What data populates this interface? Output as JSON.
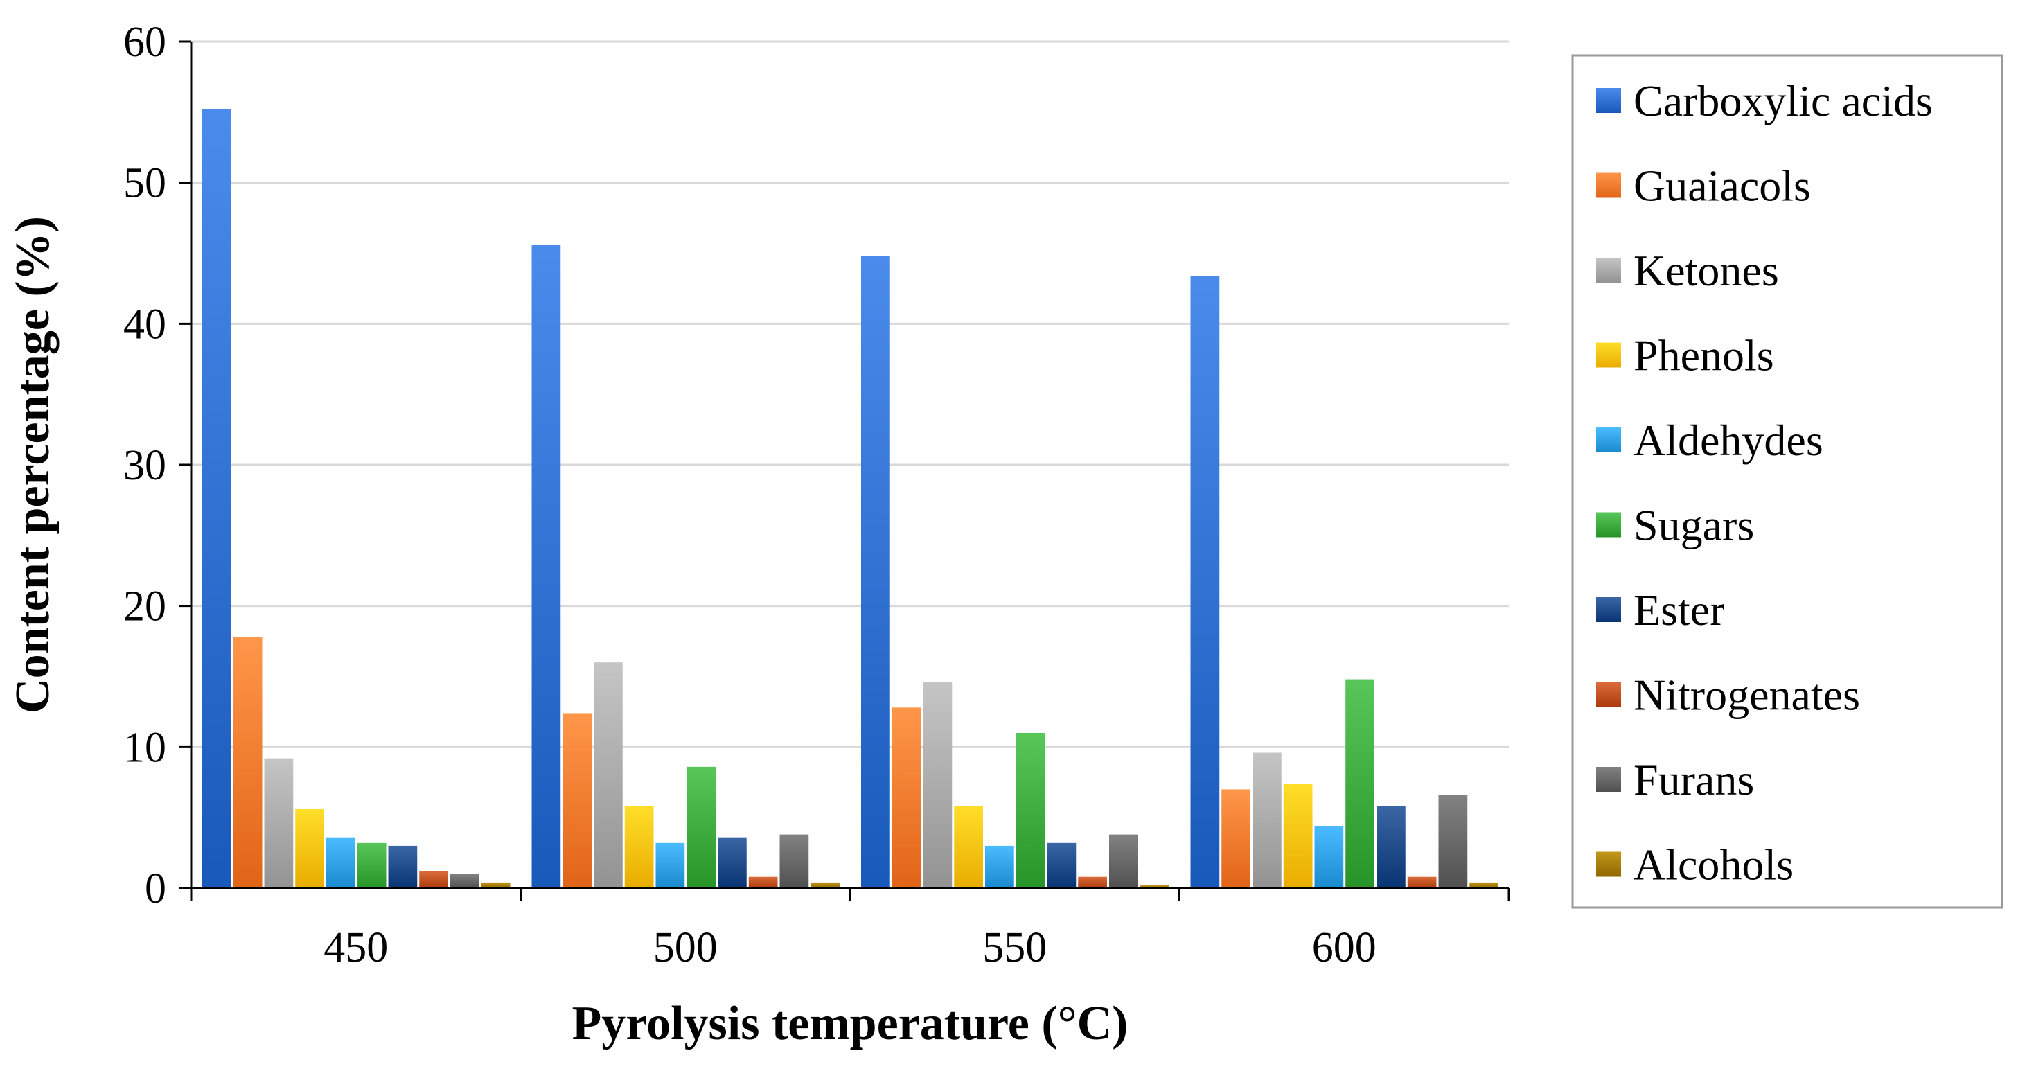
{
  "chart_data": {
    "type": "bar",
    "title": "",
    "xlabel": "Pyrolysis temperature (°C)",
    "ylabel": "Content percentage (%)",
    "ylim": [
      0,
      60
    ],
    "yticks": [
      0,
      10,
      20,
      30,
      40,
      50,
      60
    ],
    "grid": true,
    "legend_position": "right",
    "categories": [
      "450",
      "500",
      "550",
      "600"
    ],
    "series": [
      {
        "name": "Carboxylic acids",
        "color": "#2E6FD0",
        "values": [
          55.2,
          45.6,
          44.8,
          43.4
        ]
      },
      {
        "name": "Guaiacols",
        "color": "#F77A2D",
        "values": [
          17.8,
          12.4,
          12.8,
          7.0
        ]
      },
      {
        "name": "Ketones",
        "color": "#A9A9A9",
        "values": [
          9.2,
          16.0,
          14.6,
          9.6
        ]
      },
      {
        "name": "Phenols",
        "color": "#FFC20E",
        "values": [
          5.6,
          5.8,
          5.8,
          7.4
        ]
      },
      {
        "name": "Aldehydes",
        "color": "#2FA0E4",
        "values": [
          3.6,
          3.2,
          3.0,
          4.4
        ]
      },
      {
        "name": "Sugars",
        "color": "#3DAA3D",
        "values": [
          3.2,
          8.6,
          11.0,
          14.8
        ]
      },
      {
        "name": "Ester",
        "color": "#1F4A8A",
        "values": [
          3.0,
          3.6,
          3.2,
          5.8
        ]
      },
      {
        "name": "Nitrogenates",
        "color": "#C0501F",
        "values": [
          1.2,
          0.8,
          0.8,
          0.8
        ]
      },
      {
        "name": "Furans",
        "color": "#666666",
        "values": [
          1.0,
          3.8,
          3.8,
          6.6
        ]
      },
      {
        "name": "Alcohols",
        "color": "#A67C00",
        "values": [
          0.4,
          0.4,
          0.2,
          0.4
        ]
      }
    ]
  }
}
